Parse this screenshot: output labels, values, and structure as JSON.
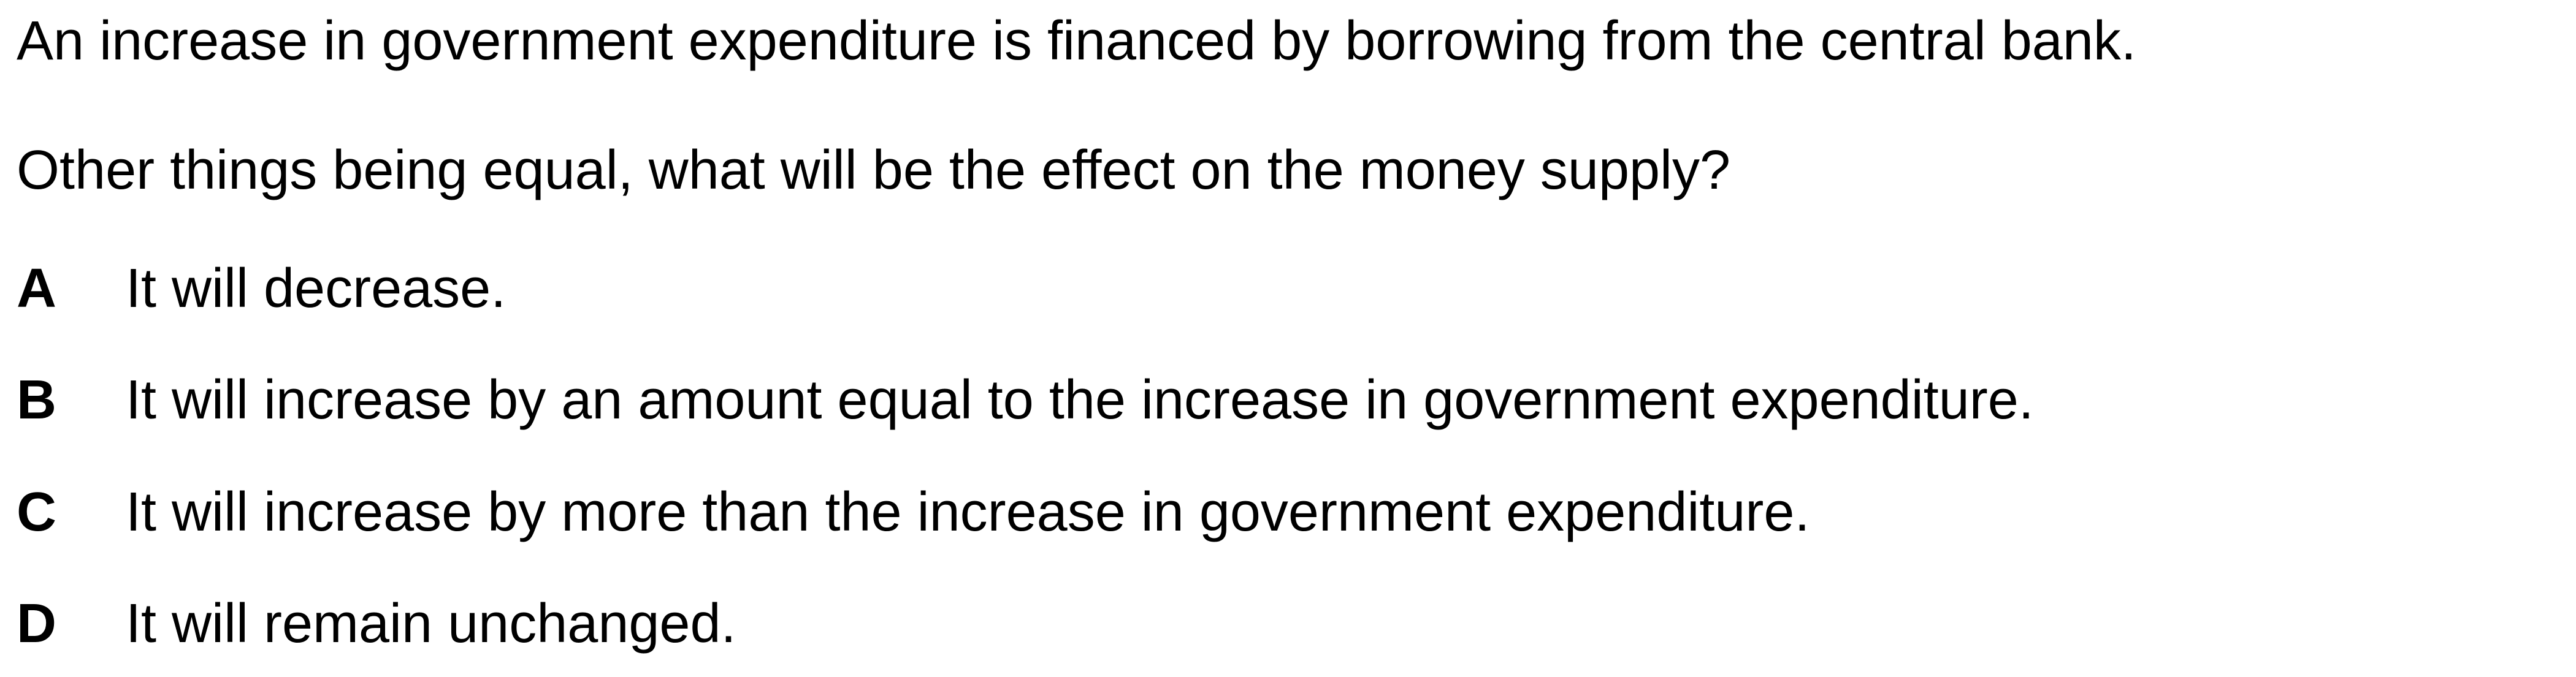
{
  "question": {
    "stem": "An increase in government expenditure is financed by borrowing from the central bank.",
    "prompt": "Other things being equal, what will be the effect on the money supply?",
    "options": [
      {
        "letter": "A",
        "text": "It will decrease."
      },
      {
        "letter": "B",
        "text": "It will increase by an amount equal to the increase in government expenditure."
      },
      {
        "letter": "C",
        "text": "It will increase by more than the increase in government expenditure."
      },
      {
        "letter": "D",
        "text": "It will remain unchanged."
      }
    ]
  }
}
